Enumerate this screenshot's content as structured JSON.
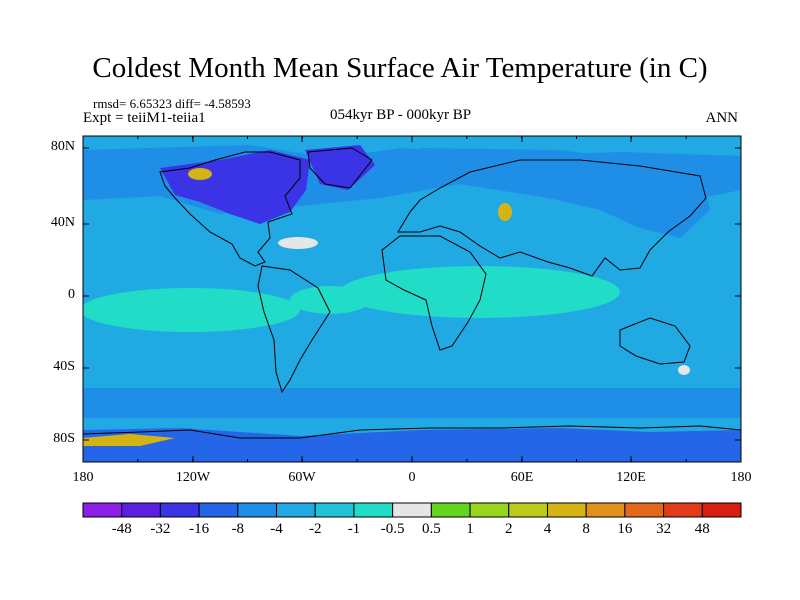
{
  "title": "Coldest Month Mean Surface Air Temperature (in C)",
  "stats": {
    "rmsd_diff": "rmsd= 6.65323 diff= -4.58593",
    "expt": "Expt = teiiM1-teiia1",
    "period": "054kyr BP - 000kyr BP",
    "season": "ANN"
  },
  "axes": {
    "lat_labels": [
      "80N",
      "40N",
      "0",
      "40S",
      "80S"
    ],
    "lon_labels": [
      "180",
      "120W",
      "60W",
      "0",
      "60E",
      "120E",
      "180"
    ]
  },
  "colorbar": {
    "labels": [
      "-48",
      "-32",
      "-16",
      "-8",
      "-4",
      "-2",
      "-1",
      "-0.5",
      "0.5",
      "1",
      "2",
      "4",
      "8",
      "16",
      "32",
      "48"
    ],
    "colors": [
      "#8c1ee8",
      "#5a1fe0",
      "#3b33e6",
      "#2566e8",
      "#1f8ee6",
      "#21a9e3",
      "#1fc2d8",
      "#21dcc6",
      "#e6e6e6",
      "#62d61f",
      "#97d61a",
      "#bccc18",
      "#d6b315",
      "#e0921a",
      "#e5671b",
      "#e33a19",
      "#d91d10"
    ]
  },
  "map_colors": {
    "ocean": "#21a9e3",
    "land_main": "#1f8ee6",
    "cold": "#2566e8",
    "very_cold": "#3b33e6",
    "near_zero": "#21dcc6",
    "warm_spot": "#d6b315",
    "white_spot": "#e6e6e6"
  }
}
